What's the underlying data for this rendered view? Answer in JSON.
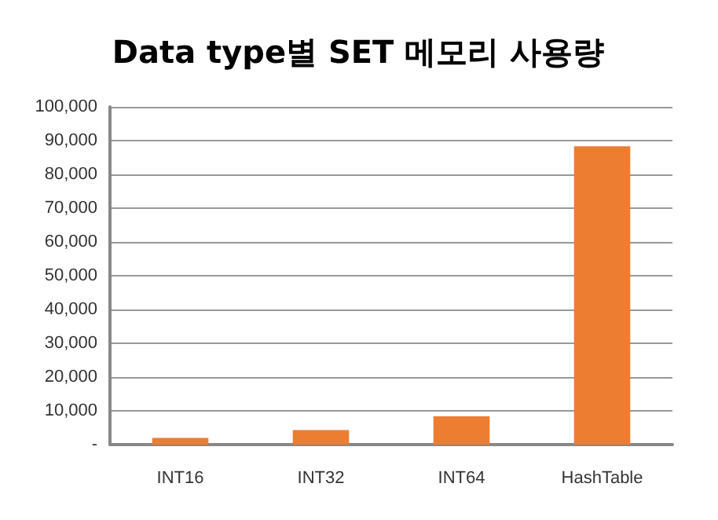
{
  "chart_data": {
    "type": "bar",
    "title": "Data type별 SET 메모리 사용량",
    "categories": [
      "INT16",
      "INT32",
      "INT64",
      "HashTable"
    ],
    "values": [
      2000,
      4300,
      8400,
      88300
    ],
    "color": "#ed7d31",
    "ylim": [
      0,
      100000
    ],
    "yticks": [
      {
        "value": 0,
        "label": "-"
      },
      {
        "value": 10000,
        "label": "10,000"
      },
      {
        "value": 20000,
        "label": "20,000"
      },
      {
        "value": 30000,
        "label": "30,000"
      },
      {
        "value": 40000,
        "label": "40,000"
      },
      {
        "value": 50000,
        "label": "50,000"
      },
      {
        "value": 60000,
        "label": "60,000"
      },
      {
        "value": 70000,
        "label": "70,000"
      },
      {
        "value": 80000,
        "label": "80,000"
      },
      {
        "value": 90000,
        "label": "90,000"
      },
      {
        "value": 100000,
        "label": "100,000"
      }
    ],
    "grid": true
  }
}
